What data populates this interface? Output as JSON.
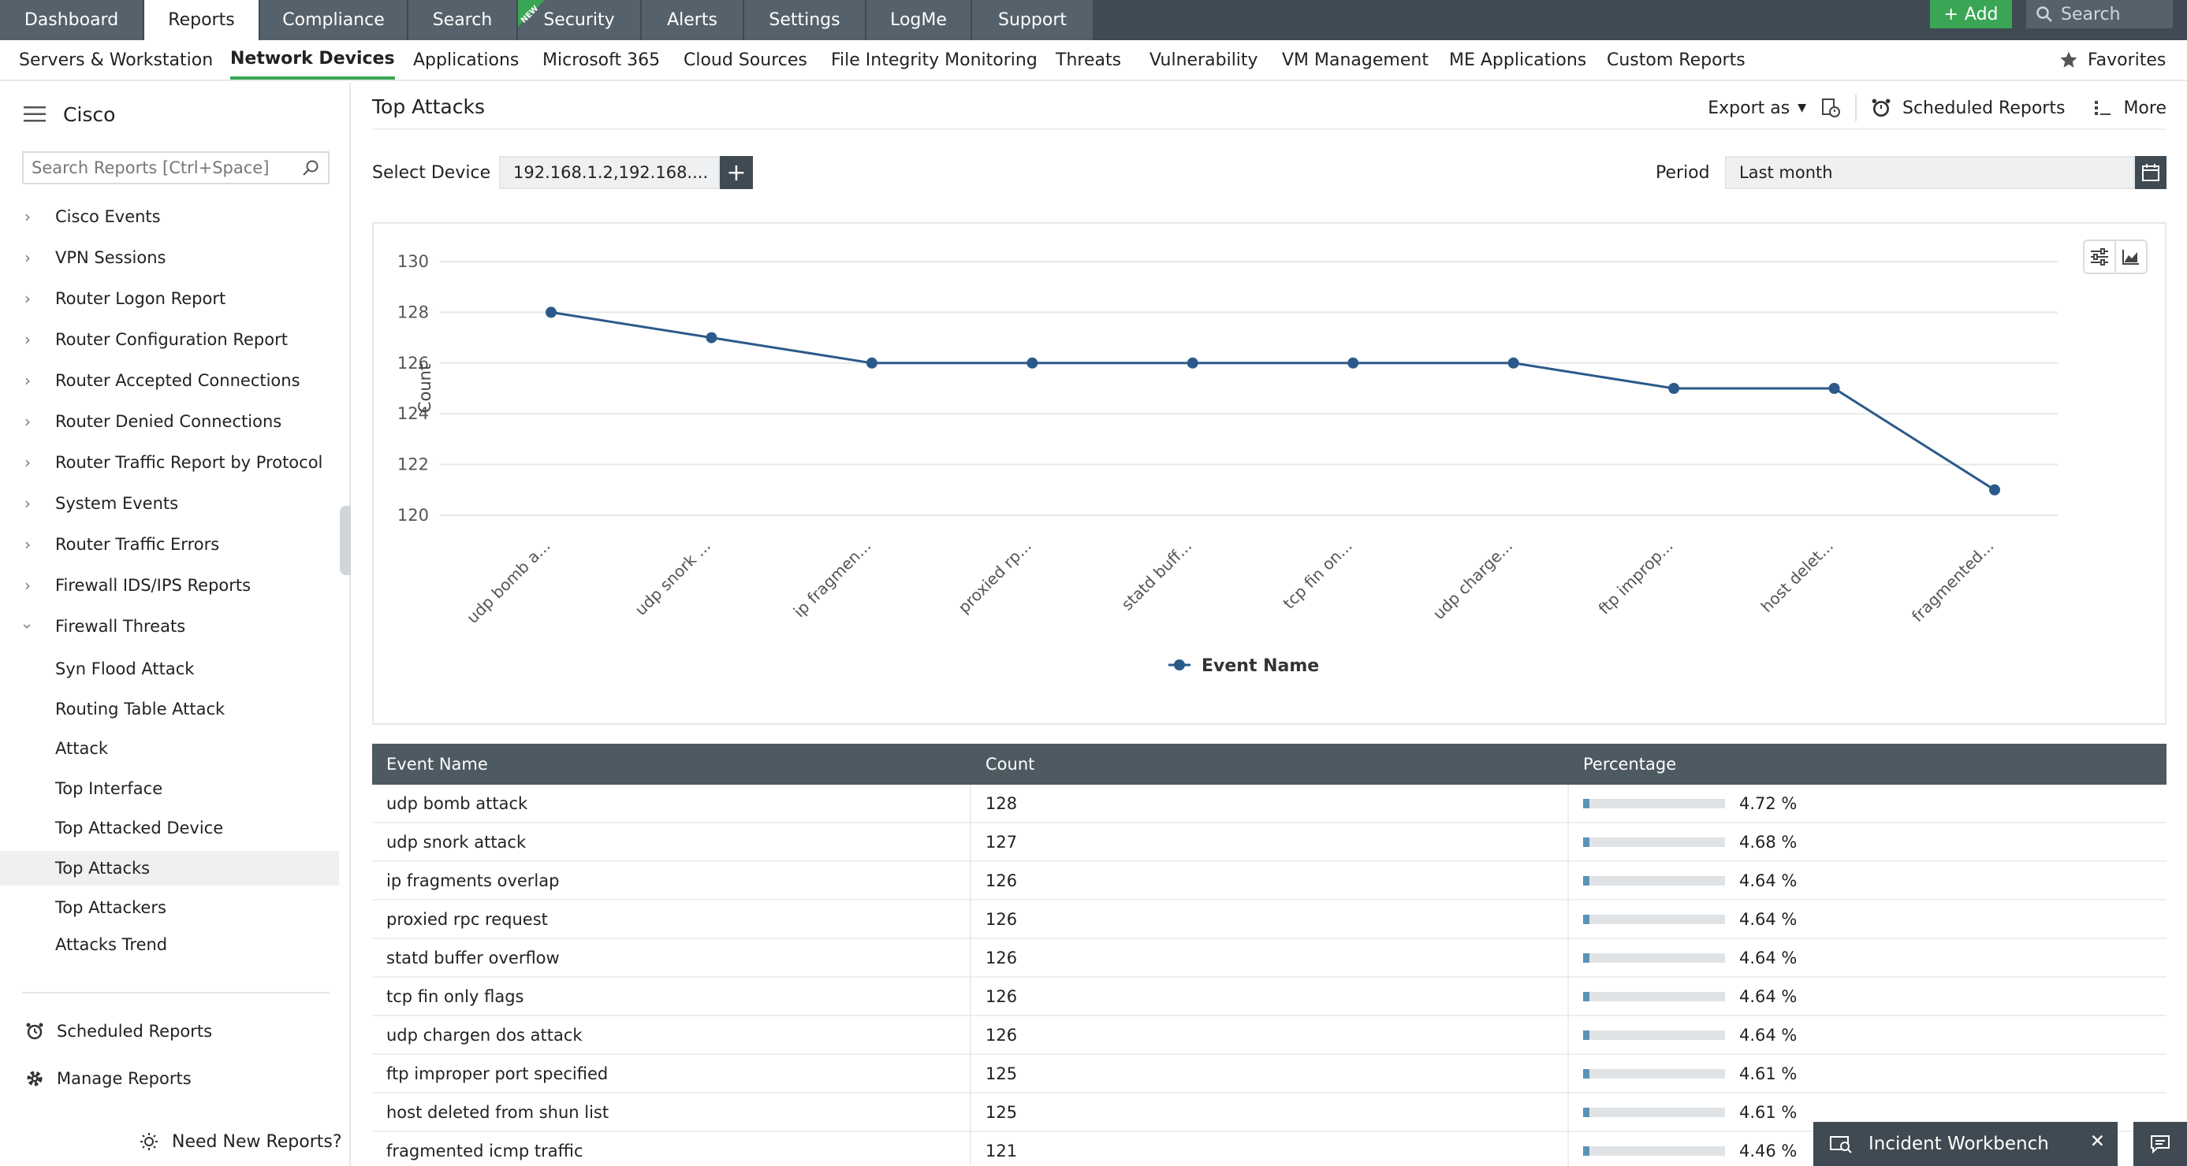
{
  "colors": {
    "accent": "#3aa655",
    "nav_dark": "#3f4a52",
    "line_series": "#2b5a8a",
    "bar_fill": "#5a93b5"
  },
  "top_tabs": [
    "Dashboard",
    "Reports",
    "Compliance",
    "Search",
    "Security",
    "Alerts",
    "Settings",
    "LogMe",
    "Support"
  ],
  "new_badge": "NEW",
  "add_label": "Add",
  "top_search_placeholder": "Search",
  "sub_tabs": [
    "Servers & Workstation",
    "Network Devices",
    "Applications",
    "Microsoft 365",
    "Cloud Sources",
    "File Integrity Monitoring",
    "Threats",
    "Vulnerability",
    "VM Management",
    "ME Applications",
    "Custom Reports"
  ],
  "favorites_label": "Favorites",
  "sidebar": {
    "title": "Cisco",
    "search_placeholder": "Search Reports [Ctrl+Space]",
    "groups": [
      "Cisco Events",
      "VPN Sessions",
      "Router Logon Report",
      "Router Configuration Report",
      "Router Accepted Connections",
      "Router Denied Connections",
      "Router Traffic Report by Protocol",
      "System Events",
      "Router Traffic Errors",
      "Firewall IDS/IPS Reports",
      "Firewall Threats"
    ],
    "children": [
      "Syn Flood Attack",
      "Routing Table Attack",
      "Attack",
      "Top Interface",
      "Top Attacked Device",
      "Top Attacks",
      "Top Attackers",
      "Attacks Trend"
    ],
    "scheduled_reports": "Scheduled Reports",
    "manage_reports": "Manage Reports",
    "need_new_reports": "Need New Reports?"
  },
  "page": {
    "title": "Top Attacks",
    "export_as": "Export as",
    "scheduled_reports": "Scheduled Reports",
    "more": "More",
    "select_device_label": "Select Device",
    "device_value": "192.168.1.2,192.168....",
    "period_label": "Period",
    "period_value": "Last month"
  },
  "chart_data": {
    "type": "line",
    "categories": [
      "udp bomb a...",
      "udp snork ...",
      "ip fragmen...",
      "proxied rp...",
      "statd buff...",
      "tcp fin on...",
      "udp charge...",
      "ftp improp...",
      "host delet...",
      "fragmented..."
    ],
    "series": [
      {
        "name": "Event Name",
        "values": [
          128,
          127,
          126,
          126,
          126,
          126,
          126,
          125,
          125,
          121
        ]
      }
    ],
    "ylabel": "Count",
    "ylim": [
      120,
      130
    ],
    "yticks": [
      120,
      122,
      124,
      126,
      128,
      130
    ],
    "grid": true,
    "legend": "bottom-center"
  },
  "table": {
    "headers": [
      "Event Name",
      "Count",
      "Percentage"
    ],
    "rows": [
      {
        "name": "udp bomb attack",
        "count": "128",
        "pct": "4.72 %",
        "fill": 0.0472
      },
      {
        "name": "udp snork attack",
        "count": "127",
        "pct": "4.68 %",
        "fill": 0.0468
      },
      {
        "name": "ip fragments overlap",
        "count": "126",
        "pct": "4.64 %",
        "fill": 0.0464
      },
      {
        "name": "proxied rpc request",
        "count": "126",
        "pct": "4.64 %",
        "fill": 0.0464
      },
      {
        "name": "statd buffer overflow",
        "count": "126",
        "pct": "4.64 %",
        "fill": 0.0464
      },
      {
        "name": "tcp fin only flags",
        "count": "126",
        "pct": "4.64 %",
        "fill": 0.0464
      },
      {
        "name": "udp chargen dos attack",
        "count": "126",
        "pct": "4.64 %",
        "fill": 0.0464
      },
      {
        "name": "ftp improper port specified",
        "count": "125",
        "pct": "4.61 %",
        "fill": 0.0461
      },
      {
        "name": "host deleted from shun list",
        "count": "125",
        "pct": "4.61 %",
        "fill": 0.0461
      },
      {
        "name": "fragmented icmp traffic",
        "count": "121",
        "pct": "4.46 %",
        "fill": 0.0446
      }
    ]
  },
  "incident_workbench": "Incident Workbench"
}
